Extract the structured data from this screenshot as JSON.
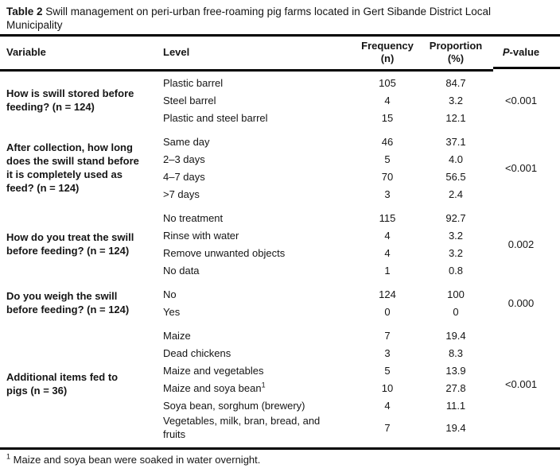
{
  "title": {
    "label": "Table 2",
    "caption_lines": [
      "Swill management on peri-urban free-roaming pig farms located in Gert Sibande District Local",
      "Municipality"
    ]
  },
  "header": {
    "variable": "Variable",
    "level": "Level",
    "frequency_lines": [
      "Frequency",
      "(n)"
    ],
    "proportion_lines": [
      "Proportion",
      "(%)"
    ],
    "p_value": {
      "italic": "P",
      "rest": "-value"
    }
  },
  "sections": [
    {
      "variable_lines": [
        "How is swill stored before",
        "feeding? (n = 124)"
      ],
      "p_value": "<0.001",
      "rows": [
        {
          "level": "Plastic barrel",
          "frequency": "105",
          "proportion": "84.7"
        },
        {
          "level": "Steel barrel",
          "frequency": "4",
          "proportion": "3.2"
        },
        {
          "level": "Plastic and steel barrel",
          "frequency": "15",
          "proportion": "12.1"
        }
      ]
    },
    {
      "variable_lines": [
        "After collection, how long",
        "does the swill stand before",
        "it is completely used as",
        "feed? (n = 124)"
      ],
      "p_value": "<0.001",
      "rows": [
        {
          "level": "Same day",
          "frequency": "46",
          "proportion": "37.1"
        },
        {
          "level": "2–3 days",
          "frequency": "5",
          "proportion": "4.0"
        },
        {
          "level": "4–7 days",
          "frequency": "70",
          "proportion": "56.5"
        },
        {
          "level": ">7 days",
          "frequency": "3",
          "proportion": "2.4"
        }
      ]
    },
    {
      "variable_lines": [
        "How do you treat the swill",
        "before feeding? (n = 124)"
      ],
      "p_value": "0.002",
      "rows": [
        {
          "level": "No treatment",
          "frequency": "115",
          "proportion": "92.7"
        },
        {
          "level": "Rinse with water",
          "frequency": "4",
          "proportion": "3.2"
        },
        {
          "level": "Remove unwanted objects",
          "frequency": "4",
          "proportion": "3.2"
        },
        {
          "level": "No data",
          "frequency": "1",
          "proportion": "0.8"
        }
      ]
    },
    {
      "variable_lines": [
        "Do you weigh the swill",
        "before feeding? (n = 124)"
      ],
      "p_value": "0.000",
      "rows": [
        {
          "level": "No",
          "frequency": "124",
          "proportion": "100"
        },
        {
          "level": "Yes",
          "frequency": "0",
          "proportion": "0"
        }
      ]
    },
    {
      "variable_lines": [
        "Additional items fed to",
        "pigs (n = 36)"
      ],
      "p_value": "<0.001",
      "rows": [
        {
          "level": "Maize",
          "frequency": "7",
          "proportion": "19.4"
        },
        {
          "level": "Dead chickens",
          "frequency": "3",
          "proportion": "8.3"
        },
        {
          "level": "Maize and vegetables",
          "frequency": "5",
          "proportion": "13.9"
        },
        {
          "level": "Maize and soya bean",
          "level_sup": "1",
          "frequency": "10",
          "proportion": "27.8"
        },
        {
          "level": "Soya bean, sorghum (brewery)",
          "frequency": "4",
          "proportion": "11.1"
        },
        {
          "level": "Vegetables, milk, bran, bread, and fruits",
          "frequency": "7",
          "proportion": "19.4"
        }
      ]
    }
  ],
  "footnote": {
    "marker": "1",
    "text": "Maize and soya bean were soaked in water overnight."
  }
}
